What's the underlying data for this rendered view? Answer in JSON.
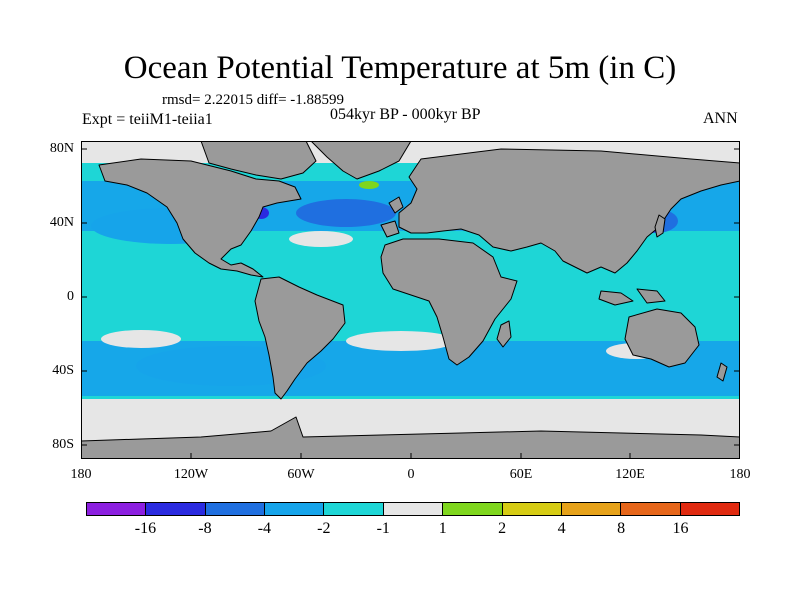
{
  "plot": {
    "title": "Ocean Potential Temperature at 5m (in C)",
    "stats": "rmsd= 2.22015 diff= -1.88599",
    "left_label": "Expt = teiiM1-teiia1",
    "center_label": "054kyr BP - 000kyr BP",
    "right_label": "ANN"
  },
  "axes": {
    "lat_labels": [
      "80N",
      "40N",
      "0",
      "40S",
      "80S"
    ],
    "lon_labels": [
      "180",
      "120W",
      "60W",
      "0",
      "60E",
      "120E",
      "180"
    ]
  },
  "colorbar": {
    "colors": [
      "#8c1fe0",
      "#2b2be0",
      "#1f6fe0",
      "#16a4ea",
      "#1ed6d6",
      "#e6e6e6",
      "#7fd61e",
      "#d6cc14",
      "#e6a21a",
      "#e6661a",
      "#e02a10"
    ],
    "labels": [
      "-16",
      "-8",
      "-4",
      "-2",
      "-1",
      "1",
      "2",
      "4",
      "8",
      "16"
    ]
  },
  "map_colors": {
    "land": "#9a9a9a",
    "ocean_base": "#1ed6d6",
    "ocean_cool": "#16a4ea",
    "ocean_cold": "#1f6fe0",
    "ocean_very_cold": "#2b2be0",
    "neutral": "#e6e6e6",
    "warm": "#7fd61e"
  }
}
